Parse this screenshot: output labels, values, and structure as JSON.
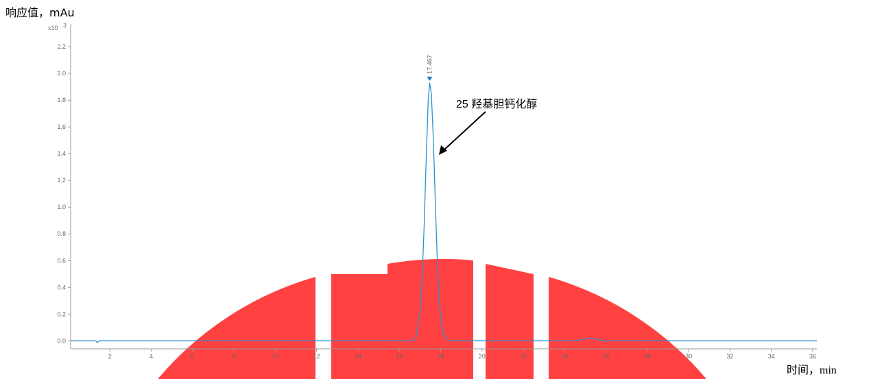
{
  "chart_data": {
    "type": "line",
    "y_label": "响应值，mAu",
    "x_label": "时间，min",
    "y_multiplier": "x10",
    "y_multiplier_exp": 3,
    "annotation": "25 羟基胆钙化醇",
    "peak_x": 17.467,
    "x": [
      0.1,
      1.3,
      1.4,
      1.5,
      1.6,
      16.6,
      16.8,
      17.0,
      17.1,
      17.2,
      17.3,
      17.4,
      17.467,
      17.55,
      17.65,
      17.75,
      17.85,
      17.95,
      18.1,
      18.3,
      18.5,
      24.5,
      24.9,
      25.2,
      25.5,
      25.8,
      36.2
    ],
    "series": [
      {
        "color": "#2a8fd0",
        "values": [
          0,
          0,
          -0.012,
          0.002,
          0,
          0,
          0.02,
          0.2,
          0.45,
          0.85,
          1.35,
          1.8,
          1.93,
          1.85,
          1.5,
          1.0,
          0.55,
          0.25,
          0.06,
          0.01,
          0,
          0,
          0.012,
          0.018,
          0.015,
          0,
          0
        ]
      }
    ],
    "xlim": [
      0.1,
      36.2
    ],
    "ylim": [
      -0.06,
      2.37
    ],
    "xticks": [
      2,
      4,
      6,
      8,
      10,
      12,
      14,
      16,
      18,
      20,
      22,
      24,
      26,
      28,
      30,
      32,
      34,
      36
    ],
    "yticks": [
      {
        "value": 0,
        "label": "0.0"
      },
      0.2,
      0.4,
      0.6,
      0.8,
      {
        "value": 1,
        "label": "1.0"
      },
      1.2,
      1.4,
      1.6,
      1.8,
      {
        "value": 2,
        "label": "2.0"
      },
      2.2
    ]
  }
}
